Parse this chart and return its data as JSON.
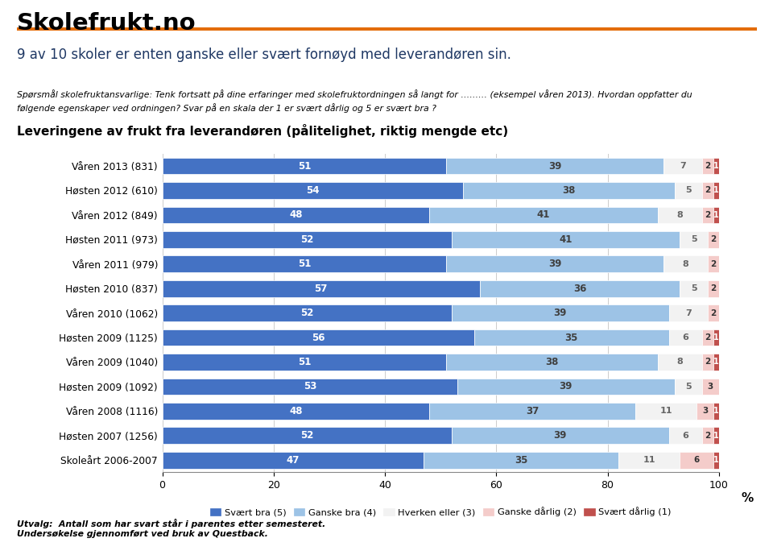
{
  "title": "Leveringene av frukt fra leverandøren (pålitelighet, riktig mengde etc)",
  "headline": "9 av 10 skoler er enten ganske eller svært fornøyd med leverandøren sin.",
  "question_line1": "Spørsmål skolefruktansvarlige: Tenk fortsatt på dine erfaringer med skolefruktordningen så langt for ……… (eksempel våren 2013). Hvordan oppfatter du",
  "question_line2": "følgende egenskaper ved ordningen? Svar på en skala der 1 er svært dårlig og 5 er svært bra ?",
  "categories": [
    "Våren 2013 (831)",
    "Høsten 2012 (610)",
    "Våren 2012 (849)",
    "Høsten 2011 (973)",
    "Våren 2011 (979)",
    "Høsten 2010 (837)",
    "Våren 2010 (1062)",
    "Høsten 2009 (1125)",
    "Våren 2009 (1040)",
    "Høsten 2009 (1092)",
    "Våren 2008 (1116)",
    "Høsten 2007 (1256)",
    "Skoleårt 2006-2007"
  ],
  "svært_bra": [
    51,
    54,
    48,
    52,
    51,
    57,
    52,
    56,
    51,
    53,
    48,
    52,
    47
  ],
  "ganske_bra": [
    39,
    38,
    41,
    41,
    39,
    36,
    39,
    35,
    38,
    39,
    37,
    39,
    35
  ],
  "hverken": [
    7,
    5,
    8,
    5,
    8,
    5,
    7,
    6,
    8,
    5,
    11,
    6,
    11
  ],
  "ganske_dårlig": [
    2,
    2,
    2,
    2,
    2,
    2,
    2,
    2,
    2,
    3,
    3,
    2,
    6
  ],
  "svært_dårlig": [
    1,
    1,
    1,
    0,
    0,
    0,
    0,
    1,
    1,
    0,
    1,
    1,
    1
  ],
  "color_svært_bra": "#4472C4",
  "color_ganske_bra": "#9DC3E6",
  "color_hverken": "#F2F2F2",
  "color_ganske_dårlig": "#F4CCCA",
  "color_svært_dårlig": "#C0504D",
  "footer_line1": "Utvalg:  Antall som har svart står i parentes etter semesteret.",
  "footer_line2": "Undersøkelse gjennomført ved bruk av Questback.",
  "logo_text": "Skolefrukt.no",
  "xlabel": "%",
  "xlim": [
    0,
    100
  ],
  "xticks": [
    0,
    20,
    40,
    60,
    80,
    100
  ],
  "legend_labels": [
    "Svært bra (5)",
    "Ganske bra (4)",
    "Hverken eller (3)",
    "Ganske dårlig (2)",
    "Svært dårlig (1)"
  ],
  "orange_line_color": "#E36C09",
  "headline_color": "#1F3864"
}
